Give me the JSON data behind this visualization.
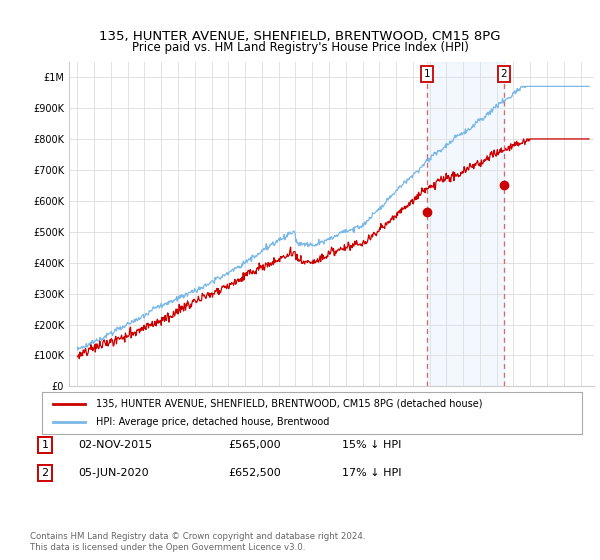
{
  "title": "135, HUNTER AVENUE, SHENFIELD, BRENTWOOD, CM15 8PG",
  "subtitle": "Price paid vs. HM Land Registry's House Price Index (HPI)",
  "ytick_values": [
    0,
    100000,
    200000,
    300000,
    400000,
    500000,
    600000,
    700000,
    800000,
    900000,
    1000000
  ],
  "ylim": [
    0,
    1050000
  ],
  "xlim_start": 1994.5,
  "xlim_end": 2025.8,
  "hpi_color": "#7ab8e8",
  "hpi_fill_color": "#d8eaf8",
  "price_color": "#cc0000",
  "dash_color": "#dd6666",
  "transaction1_x": 2015.84,
  "transaction1_y": 565000,
  "transaction2_x": 2020.43,
  "transaction2_y": 652500,
  "legend_address": "135, HUNTER AVENUE, SHENFIELD, BRENTWOOD, CM15 8PG (detached house)",
  "legend_hpi": "HPI: Average price, detached house, Brentwood",
  "table_rows": [
    {
      "num": "1",
      "date": "02-NOV-2015",
      "price": "£565,000",
      "change": "15% ↓ HPI"
    },
    {
      "num": "2",
      "date": "05-JUN-2020",
      "price": "£652,500",
      "change": "17% ↓ HPI"
    }
  ],
  "footnote": "Contains HM Land Registry data © Crown copyright and database right 2024.\nThis data is licensed under the Open Government Licence v3.0.",
  "background_color": "#ffffff",
  "grid_color": "#dddddd"
}
